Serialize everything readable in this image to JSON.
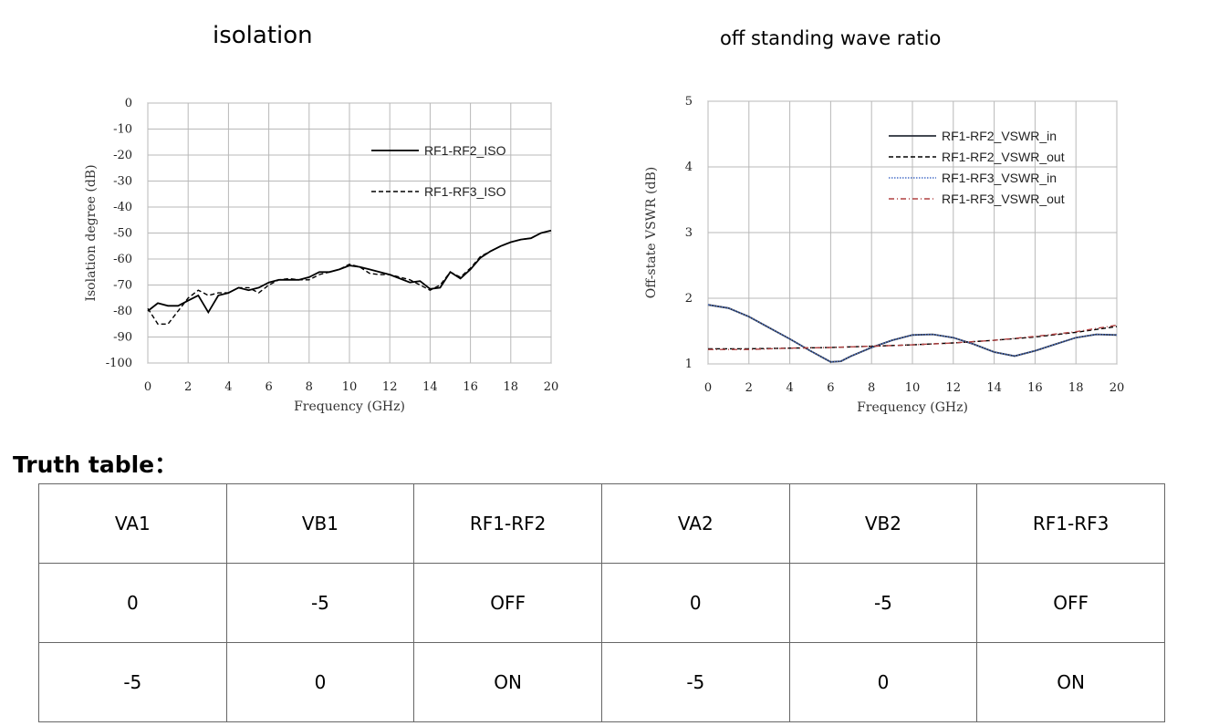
{
  "chart_data": [
    {
      "type": "line",
      "title": "isolation",
      "xlabel": "Frequency (GHz)",
      "ylabel": "Isolation degree (dB)",
      "xlim": [
        0,
        20
      ],
      "ylim": [
        -100,
        0
      ],
      "xticks": [
        "0",
        "2",
        "4",
        "6",
        "8",
        "10",
        "12",
        "14",
        "16",
        "18",
        "20"
      ],
      "yticks": [
        "0",
        "-10",
        "-20",
        "-30",
        "-40",
        "-50",
        "-60",
        "-70",
        "-80",
        "-90",
        "-100"
      ],
      "grid": true,
      "legend_position": "top-right",
      "series": [
        {
          "name": "RF1-RF2_ISO",
          "style": "solid",
          "color": "#000000",
          "x": [
            0,
            0.5,
            1,
            1.5,
            2,
            2.5,
            3,
            3.5,
            4,
            4.5,
            5,
            5.5,
            6,
            6.5,
            7,
            7.5,
            8,
            8.5,
            9,
            9.5,
            10,
            10.5,
            11,
            11.5,
            12,
            12.5,
            13,
            13.5,
            14,
            14.5,
            15,
            15.5,
            16,
            16.5,
            17,
            17.5,
            18,
            18.5,
            19,
            19.5,
            20
          ],
          "y": [
            -80,
            -77,
            -78,
            -78,
            -76,
            -74,
            -80.5,
            -74,
            -73,
            -71,
            -72,
            -71,
            -69,
            -68,
            -68,
            -68,
            -67,
            -65,
            -65,
            -64,
            -62.5,
            -63,
            -64,
            -65,
            -66,
            -67.5,
            -69,
            -68.5,
            -71.5,
            -71,
            -65,
            -67.5,
            -64,
            -59.5,
            -57,
            -55,
            -53.5,
            -52.5,
            -52,
            -50,
            -49
          ]
        },
        {
          "name": "RF1-RF3_ISO",
          "style": "dashed",
          "color": "#000000",
          "x": [
            0,
            0.5,
            1,
            1.5,
            2,
            2.5,
            3,
            3.5,
            4,
            4.5,
            5,
            5.5,
            6,
            6.5,
            7,
            7.5,
            8,
            8.5,
            9,
            9.5,
            10,
            10.5,
            11,
            11.5,
            12,
            12.5,
            13,
            13.5,
            14,
            14.5,
            15,
            15.5,
            16,
            16.5,
            17,
            17.5,
            18,
            18.5,
            19,
            19.5,
            20
          ],
          "y": [
            -79,
            -85,
            -85,
            -80,
            -75,
            -72,
            -74,
            -73,
            -73,
            -71,
            -71,
            -73,
            -70,
            -68,
            -67.5,
            -68,
            -68,
            -66,
            -65,
            -64,
            -62,
            -63,
            -65.5,
            -66,
            -66,
            -67,
            -68,
            -70,
            -72,
            -70,
            -65,
            -67,
            -63.5,
            -59,
            -57,
            -55,
            -53.5,
            -52.5,
            -52,
            -50,
            -49
          ]
        }
      ]
    },
    {
      "type": "line",
      "title": "off standing wave ratio",
      "xlabel": "Frequency (GHz)",
      "ylabel": "Off-state VSWR (dB)",
      "xlim": [
        0,
        20
      ],
      "ylim": [
        1,
        5
      ],
      "xticks": [
        "0",
        "2",
        "4",
        "6",
        "8",
        "10",
        "12",
        "14",
        "16",
        "18",
        "20"
      ],
      "yticks": [
        "1",
        "2",
        "3",
        "4",
        "5"
      ],
      "grid": true,
      "legend_position": "top-right",
      "series": [
        {
          "name": "RF1-RF2_VSWR_in",
          "style": "solid",
          "color": "#2a2f3a",
          "x": [
            0,
            1,
            2,
            3,
            4,
            5,
            6,
            6.5,
            7,
            8,
            9,
            10,
            11,
            12,
            13,
            14,
            15,
            16,
            17,
            18,
            19,
            20
          ],
          "y": [
            1.9,
            1.85,
            1.72,
            1.55,
            1.38,
            1.2,
            1.03,
            1.04,
            1.12,
            1.25,
            1.36,
            1.44,
            1.45,
            1.4,
            1.3,
            1.18,
            1.12,
            1.2,
            1.3,
            1.4,
            1.45,
            1.44
          ]
        },
        {
          "name": "RF1-RF2_VSWR_out",
          "style": "dashed",
          "color": "#000000",
          "x": [
            0,
            2,
            4,
            6,
            8,
            10,
            12,
            14,
            16,
            18,
            20
          ],
          "y": [
            1.23,
            1.23,
            1.24,
            1.25,
            1.27,
            1.29,
            1.32,
            1.36,
            1.41,
            1.48,
            1.57
          ]
        },
        {
          "name": "RF1-RF3_VSWR_in",
          "style": "dotted",
          "color": "#4a70c8",
          "x": [
            0,
            1,
            2,
            3,
            4,
            5,
            6,
            6.5,
            7,
            8,
            9,
            10,
            11,
            12,
            13,
            14,
            15,
            16,
            17,
            18,
            19,
            20
          ],
          "y": [
            1.9,
            1.85,
            1.72,
            1.55,
            1.38,
            1.2,
            1.03,
            1.04,
            1.12,
            1.25,
            1.36,
            1.44,
            1.45,
            1.4,
            1.3,
            1.18,
            1.12,
            1.2,
            1.3,
            1.4,
            1.45,
            1.44
          ]
        },
        {
          "name": "RF1-RF3_VSWR_out",
          "style": "dash-dot",
          "color": "#b04040",
          "x": [
            0,
            2,
            4,
            6,
            8,
            10,
            12,
            14,
            16,
            18,
            20
          ],
          "y": [
            1.22,
            1.22,
            1.24,
            1.25,
            1.27,
            1.29,
            1.32,
            1.36,
            1.42,
            1.49,
            1.59
          ]
        }
      ]
    }
  ],
  "truth_table": {
    "heading": "Truth table：",
    "header": [
      "VA1",
      "VB1",
      "RF1-RF2",
      "VA2",
      "VB2",
      "RF1-RF3"
    ],
    "rows": [
      [
        "0",
        "-5",
        "OFF",
        "0",
        "-5",
        "OFF"
      ],
      [
        "-5",
        "0",
        "ON",
        "-5",
        "0",
        "ON"
      ]
    ]
  }
}
